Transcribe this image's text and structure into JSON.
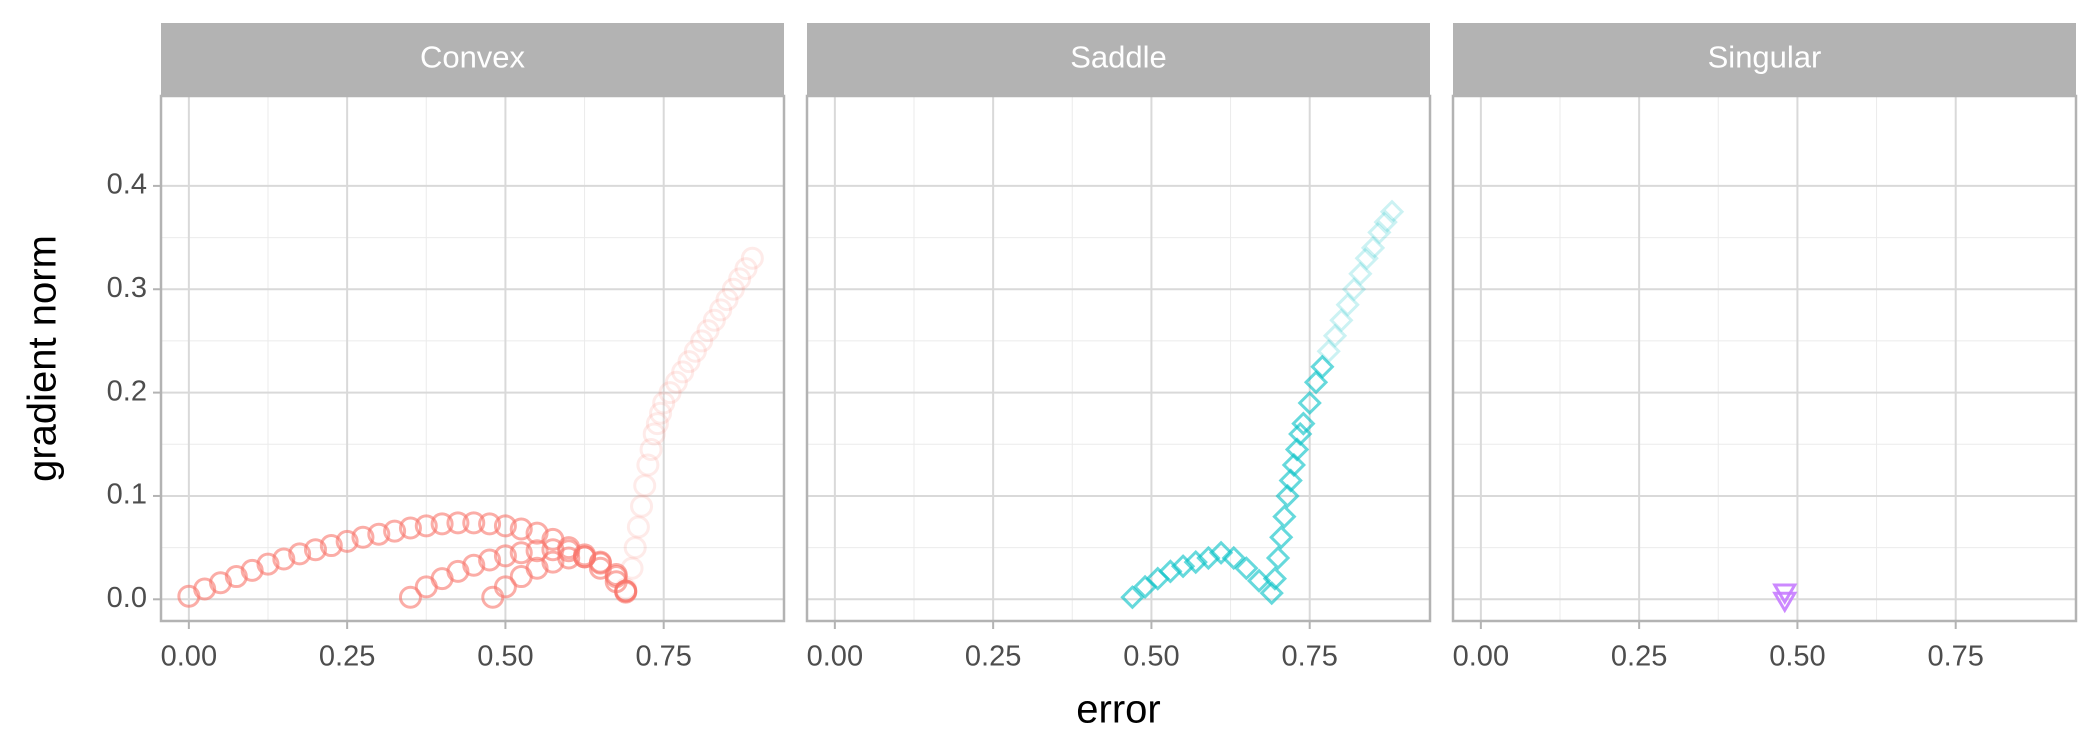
{
  "chart_data": [
    {
      "type": "scatter",
      "title": "Convex",
      "ylabel": "gradient norm",
      "xlim": [
        -0.044,
        0.94
      ],
      "ylim": [
        -0.021,
        0.487
      ],
      "xticks": [
        {
          "value": 0,
          "label": "0.00"
        },
        {
          "value": 0.25,
          "label": "0.25"
        },
        {
          "value": 0.5,
          "label": "0.50"
        },
        {
          "value": 0.75,
          "label": "0.75"
        }
      ],
      "yticks": [
        {
          "value": 0,
          "label": "0.0"
        },
        0.1,
        0.2,
        0.3,
        0.4
      ],
      "grid": true,
      "series": [
        {
          "color": "#F8766D",
          "alpha": 0.6,
          "marker": "circle",
          "x": [
            0,
            0.025,
            0.05,
            0.075,
            0.1,
            0.125,
            0.15,
            0.175,
            0.2,
            0.225,
            0.25,
            0.275,
            0.3,
            0.325,
            0.35,
            0.375,
            0.4,
            0.425,
            0.45,
            0.475,
            0.5,
            0.525,
            0.55,
            0.575,
            0.6,
            0.625,
            0.65,
            0.675,
            0.69,
            0.35,
            0.375,
            0.4,
            0.425,
            0.45,
            0.475,
            0.5,
            0.525,
            0.55,
            0.575,
            0.6,
            0.625,
            0.65,
            0.675,
            0.69,
            0.48,
            0.5,
            0.525,
            0.55,
            0.575,
            0.6,
            0.625,
            0.65,
            0.675,
            0.69
          ],
          "values": [
            0.003,
            0.01,
            0.016,
            0.022,
            0.028,
            0.034,
            0.039,
            0.044,
            0.048,
            0.052,
            0.056,
            0.06,
            0.063,
            0.066,
            0.069,
            0.071,
            0.073,
            0.074,
            0.074,
            0.073,
            0.071,
            0.068,
            0.064,
            0.058,
            0.05,
            0.041,
            0.03,
            0.017,
            0.007,
            0.002,
            0.012,
            0.02,
            0.027,
            0.033,
            0.038,
            0.042,
            0.045,
            0.047,
            0.048,
            0.047,
            0.043,
            0.035,
            0.022,
            0.008,
            0.002,
            0.012,
            0.022,
            0.03,
            0.036,
            0.04,
            0.041,
            0.036,
            0.024,
            0.008
          ]
        },
        {
          "color": "#F8766D",
          "alpha": 0.15,
          "marker": "circle",
          "x": [
            0.69,
            0.7,
            0.705,
            0.71,
            0.715,
            0.72,
            0.725,
            0.73,
            0.735,
            0.74,
            0.745,
            0.75,
            0.76,
            0.77,
            0.78,
            0.79,
            0.8,
            0.81,
            0.82,
            0.83,
            0.84,
            0.85,
            0.86,
            0.87,
            0.88,
            0.89
          ],
          "values": [
            0.01,
            0.03,
            0.05,
            0.07,
            0.09,
            0.11,
            0.13,
            0.145,
            0.16,
            0.17,
            0.18,
            0.19,
            0.2,
            0.21,
            0.22,
            0.23,
            0.24,
            0.25,
            0.26,
            0.27,
            0.28,
            0.29,
            0.3,
            0.31,
            0.32,
            0.33
          ]
        }
      ]
    },
    {
      "type": "scatter",
      "title": "Saddle",
      "xlabel": "error",
      "xlim": [
        -0.044,
        0.94
      ],
      "ylim": [
        -0.021,
        0.487
      ],
      "xticks": [
        {
          "value": 0,
          "label": "0.00"
        },
        {
          "value": 0.25,
          "label": "0.25"
        },
        {
          "value": 0.5,
          "label": "0.50"
        },
        {
          "value": 0.75,
          "label": "0.75"
        }
      ],
      "yticks": [
        0,
        0.1,
        0.2,
        0.3,
        0.4
      ],
      "grid": true,
      "series": [
        {
          "color": "#00BFC4",
          "alpha": 0.6,
          "marker": "diamond",
          "x": [
            0.47,
            0.49,
            0.51,
            0.53,
            0.55,
            0.57,
            0.59,
            0.61,
            0.63,
            0.65,
            0.67,
            0.69,
            0.695,
            0.7,
            0.705,
            0.71,
            0.715,
            0.72,
            0.725,
            0.73,
            0.735,
            0.74,
            0.75,
            0.76,
            0.77
          ],
          "values": [
            0.002,
            0.012,
            0.02,
            0.027,
            0.032,
            0.036,
            0.04,
            0.045,
            0.04,
            0.03,
            0.018,
            0.006,
            0.02,
            0.04,
            0.06,
            0.08,
            0.1,
            0.115,
            0.13,
            0.145,
            0.16,
            0.17,
            0.19,
            0.21,
            0.225
          ]
        },
        {
          "color": "#00BFC4",
          "alpha": 0.2,
          "marker": "diamond",
          "x": [
            0.78,
            0.79,
            0.8,
            0.81,
            0.82,
            0.83,
            0.84,
            0.85,
            0.86,
            0.87,
            0.88
          ],
          "values": [
            0.24,
            0.255,
            0.27,
            0.285,
            0.3,
            0.315,
            0.33,
            0.34,
            0.355,
            0.365,
            0.375
          ]
        }
      ]
    },
    {
      "type": "scatter",
      "title": "Singular",
      "xlim": [
        -0.044,
        0.94
      ],
      "ylim": [
        -0.021,
        0.487
      ],
      "xticks": [
        {
          "value": 0,
          "label": "0.00"
        },
        {
          "value": 0.25,
          "label": "0.25"
        },
        {
          "value": 0.5,
          "label": "0.50"
        },
        {
          "value": 0.75,
          "label": "0.75"
        }
      ],
      "yticks": [
        0,
        0.1,
        0.2,
        0.3,
        0.4
      ],
      "grid": true,
      "series": [
        {
          "color": "#C77CFF",
          "alpha": 0.9,
          "marker": "triangle-down",
          "x": [
            0.48,
            0.48
          ],
          "values": [
            0,
            0.008
          ]
        }
      ]
    }
  ]
}
